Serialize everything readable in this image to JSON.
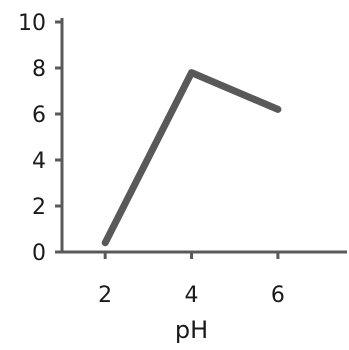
{
  "chart_data": {
    "type": "line",
    "title": "",
    "xlabel": "pH",
    "ylabel": "",
    "x": [
      2,
      4,
      6
    ],
    "series": [
      {
        "values": [
          0.4,
          7.8,
          6.2
        ]
      }
    ],
    "xlim": [
      1,
      7.6
    ],
    "ylim": [
      0,
      10
    ],
    "xticks": [
      "2",
      "4",
      "6"
    ],
    "yticks": [
      "0",
      "2",
      "4",
      "6",
      "8",
      "10"
    ],
    "grid": false,
    "colors": {
      "line": "#595959",
      "axis": "#595959",
      "text": "#1a1a1a"
    }
  }
}
